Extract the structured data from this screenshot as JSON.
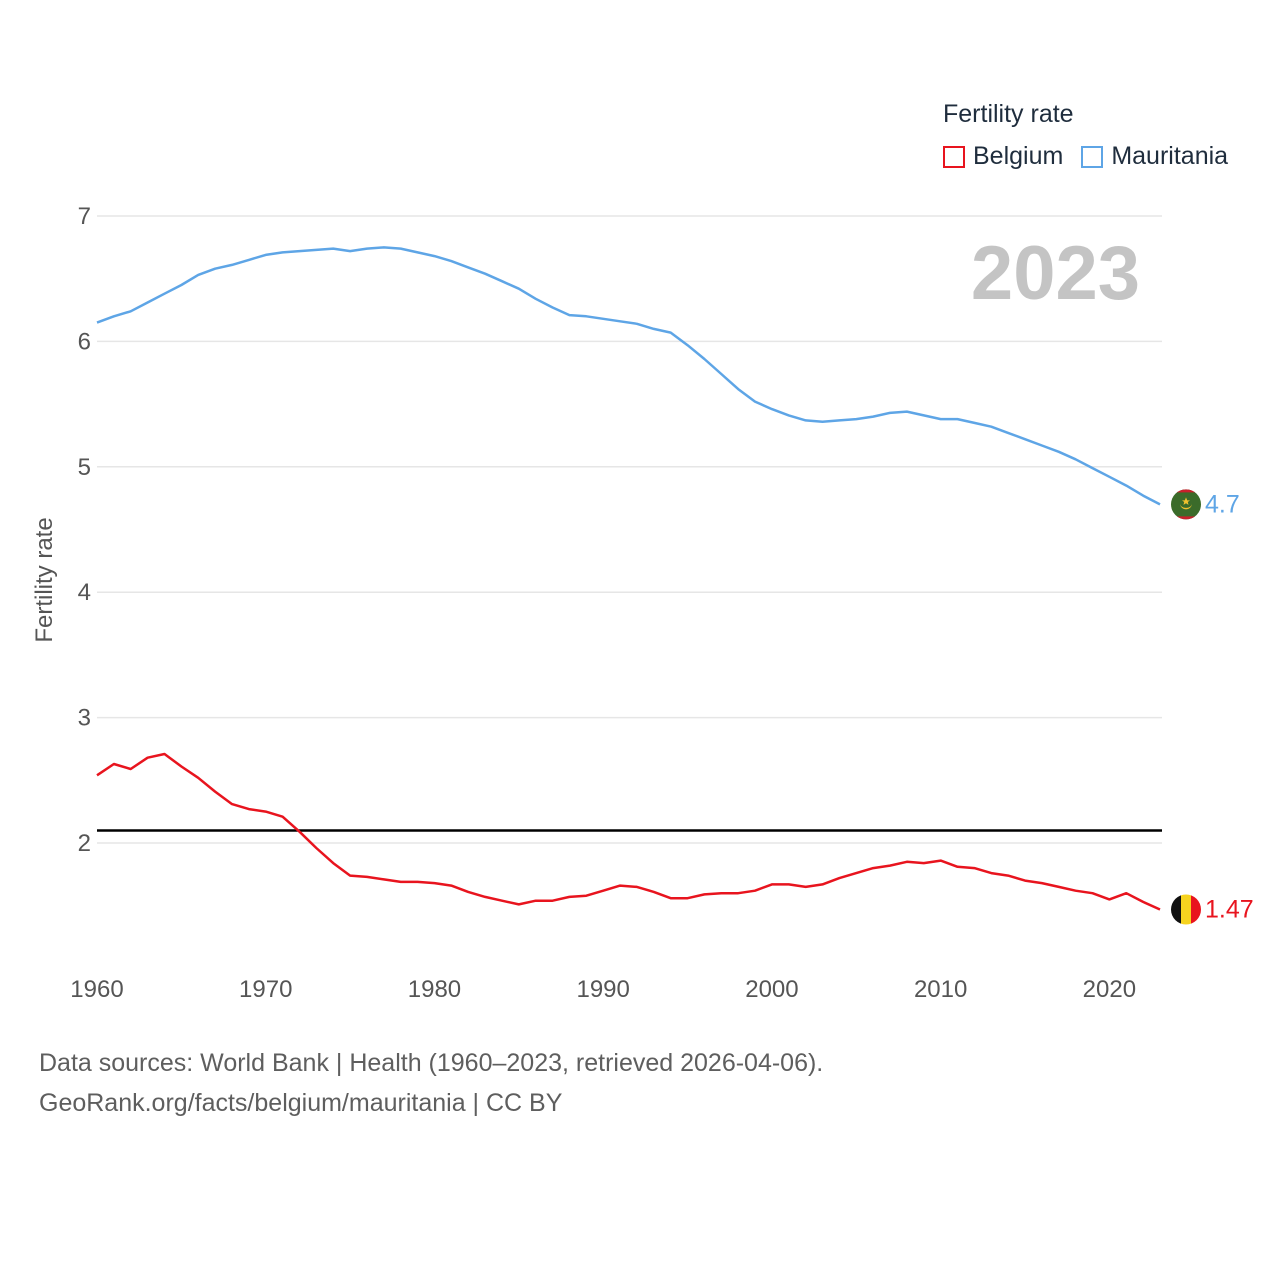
{
  "chart_data": {
    "type": "line",
    "title": "Fertility rate",
    "ylabel": "Fertility rate",
    "xlabel": "",
    "xlim": [
      1960,
      2023
    ],
    "ylim": [
      1.0,
      7.0
    ],
    "yticks": [
      2,
      3,
      4,
      5,
      6,
      7
    ],
    "xticks": [
      1960,
      1970,
      1980,
      1990,
      2000,
      2010,
      2020
    ],
    "year_watermark": "2023",
    "reference_line": {
      "y": 2.1,
      "color": "#000000"
    },
    "x": [
      1960,
      1961,
      1962,
      1963,
      1964,
      1965,
      1966,
      1967,
      1968,
      1969,
      1970,
      1971,
      1972,
      1973,
      1974,
      1975,
      1976,
      1977,
      1978,
      1979,
      1980,
      1981,
      1982,
      1983,
      1984,
      1985,
      1986,
      1987,
      1988,
      1989,
      1990,
      1991,
      1992,
      1993,
      1994,
      1995,
      1996,
      1997,
      1998,
      1999,
      2000,
      2001,
      2002,
      2003,
      2004,
      2005,
      2006,
      2007,
      2008,
      2009,
      2010,
      2011,
      2012,
      2013,
      2014,
      2015,
      2016,
      2017,
      2018,
      2019,
      2020,
      2021,
      2022,
      2023
    ],
    "series": [
      {
        "name": "Belgium",
        "color": "#e8141e",
        "end_label": "1.47",
        "flag": "belgium-flag",
        "values": [
          2.54,
          2.63,
          2.59,
          2.68,
          2.71,
          2.61,
          2.52,
          2.41,
          2.31,
          2.27,
          2.25,
          2.21,
          2.09,
          1.96,
          1.84,
          1.74,
          1.73,
          1.71,
          1.69,
          1.69,
          1.68,
          1.66,
          1.61,
          1.57,
          1.54,
          1.51,
          1.54,
          1.54,
          1.57,
          1.58,
          1.62,
          1.66,
          1.65,
          1.61,
          1.56,
          1.56,
          1.59,
          1.6,
          1.6,
          1.62,
          1.67,
          1.67,
          1.65,
          1.67,
          1.72,
          1.76,
          1.8,
          1.82,
          1.85,
          1.84,
          1.86,
          1.81,
          1.8,
          1.76,
          1.74,
          1.7,
          1.68,
          1.65,
          1.62,
          1.6,
          1.55,
          1.6,
          1.53,
          1.47
        ]
      },
      {
        "name": "Mauritania",
        "color": "#5ea5e6",
        "end_label": "4.7",
        "flag": "mauritania-flag",
        "values": [
          6.15,
          6.2,
          6.24,
          6.31,
          6.38,
          6.45,
          6.53,
          6.58,
          6.61,
          6.65,
          6.69,
          6.71,
          6.72,
          6.73,
          6.74,
          6.72,
          6.74,
          6.75,
          6.74,
          6.71,
          6.68,
          6.64,
          6.59,
          6.54,
          6.48,
          6.42,
          6.34,
          6.27,
          6.21,
          6.2,
          6.18,
          6.16,
          6.14,
          6.1,
          6.07,
          5.97,
          5.86,
          5.74,
          5.62,
          5.52,
          5.46,
          5.41,
          5.37,
          5.36,
          5.37,
          5.38,
          5.4,
          5.43,
          5.44,
          5.41,
          5.38,
          5.38,
          5.35,
          5.32,
          5.27,
          5.22,
          5.17,
          5.12,
          5.06,
          4.99,
          4.92,
          4.85,
          4.77,
          4.7
        ]
      }
    ]
  },
  "legend": {
    "title": "Fertility rate",
    "items": [
      {
        "label": "Belgium",
        "color": "#e8141e"
      },
      {
        "label": "Mauritania",
        "color": "#5ea5e6"
      }
    ]
  },
  "footer": {
    "line1": "Data sources: World Bank | Health (1960–2023, retrieved 2026-04-06).",
    "line2": "GeoRank.org/facts/belgium/mauritania | CC BY"
  }
}
